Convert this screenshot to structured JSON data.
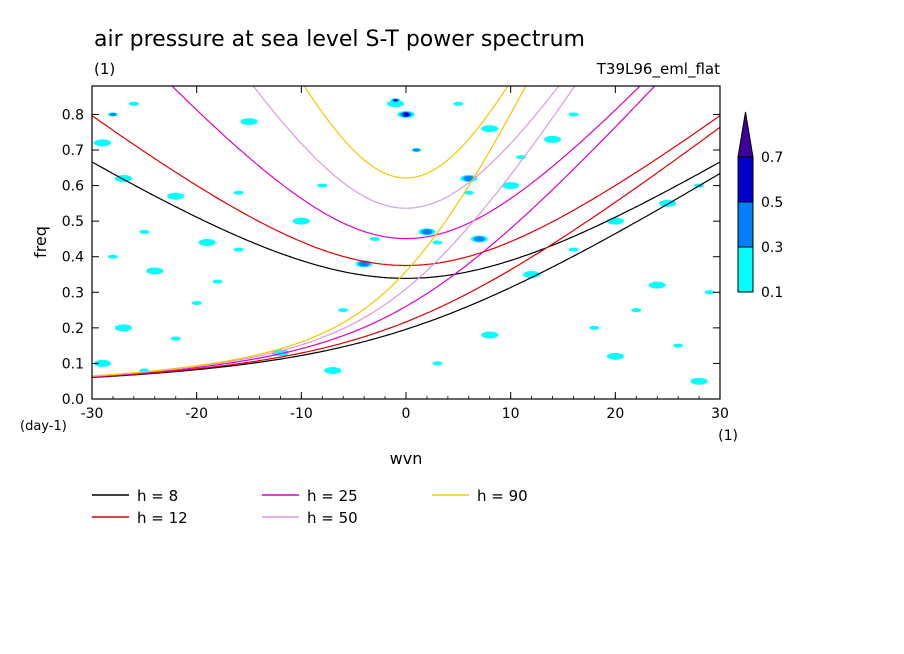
{
  "title": "air pressure at sea level S-T power spectrum",
  "subtitle_left": "(1)",
  "subtitle_right": "T39L96_eml_flat",
  "chart_data": {
    "type": "line",
    "xlabel": "wvn",
    "ylabel": "freq",
    "x_unit": "(1)",
    "y_unit": "(day-1)",
    "xlim": [
      -30,
      30
    ],
    "ylim": [
      0,
      0.88
    ],
    "xticks": [
      -30,
      -20,
      -10,
      0,
      10,
      20,
      30
    ],
    "xtick_labels": [
      "-30",
      "-20",
      "-10",
      "0",
      "10",
      "20",
      "30"
    ],
    "yticks": [
      0,
      0.1,
      0.2,
      0.3,
      0.4,
      0.5,
      0.6,
      0.7,
      0.8
    ],
    "ytick_labels": [
      "0.0",
      "0.1",
      "0.2",
      "0.3",
      "0.4",
      "0.5",
      "0.6",
      "0.7",
      "0.8"
    ],
    "colorbar": {
      "levels": [
        "0.1",
        "0.3",
        "0.5",
        "0.7"
      ],
      "colors": [
        "#00ffff",
        "#0080ff",
        "#0000cc",
        "#3d0099"
      ]
    },
    "contour_patches": [
      {
        "x": -28,
        "y": 0.8,
        "level": 1
      },
      {
        "x": -29,
        "y": 0.72,
        "level": 0
      },
      {
        "x": -26,
        "y": 0.83,
        "level": 0
      },
      {
        "x": -22,
        "y": 0.57,
        "level": 0
      },
      {
        "x": -16,
        "y": 0.58,
        "level": 0
      },
      {
        "x": -27,
        "y": 0.62,
        "level": 0
      },
      {
        "x": -25,
        "y": 0.47,
        "level": 0
      },
      {
        "x": -19,
        "y": 0.44,
        "level": 0
      },
      {
        "x": -28,
        "y": 0.4,
        "level": 0
      },
      {
        "x": -24,
        "y": 0.36,
        "level": 0
      },
      {
        "x": -16,
        "y": 0.42,
        "level": 0
      },
      {
        "x": -10,
        "y": 0.5,
        "level": 0
      },
      {
        "x": -8,
        "y": 0.6,
        "level": 0
      },
      {
        "x": -15,
        "y": 0.78,
        "level": 0
      },
      {
        "x": -18,
        "y": 0.33,
        "level": 0
      },
      {
        "x": -27,
        "y": 0.2,
        "level": 0
      },
      {
        "x": -22,
        "y": 0.17,
        "level": 0
      },
      {
        "x": -29,
        "y": 0.1,
        "level": 0
      },
      {
        "x": -25,
        "y": 0.08,
        "level": 0
      },
      {
        "x": -12,
        "y": 0.13,
        "level": 0
      },
      {
        "x": -6,
        "y": 0.25,
        "level": 0
      },
      {
        "x": -4,
        "y": 0.38,
        "level": 1
      },
      {
        "x": -3,
        "y": 0.45,
        "level": 0
      },
      {
        "x": -1,
        "y": 0.83,
        "level": 0
      },
      {
        "x": -1,
        "y": 0.84,
        "level": 2
      },
      {
        "x": 0,
        "y": 0.8,
        "level": 2
      },
      {
        "x": 1,
        "y": 0.7,
        "level": 1
      },
      {
        "x": 2,
        "y": 0.47,
        "level": 1
      },
      {
        "x": 3,
        "y": 0.44,
        "level": 0
      },
      {
        "x": 6,
        "y": 0.62,
        "level": 1
      },
      {
        "x": 6,
        "y": 0.58,
        "level": 0
      },
      {
        "x": 7,
        "y": 0.45,
        "level": 1
      },
      {
        "x": 5,
        "y": 0.83,
        "level": 0
      },
      {
        "x": 8,
        "y": 0.76,
        "level": 0
      },
      {
        "x": 11,
        "y": 0.68,
        "level": 0
      },
      {
        "x": 14,
        "y": 0.73,
        "level": 0
      },
      {
        "x": 16,
        "y": 0.8,
        "level": 0
      },
      {
        "x": 12,
        "y": 0.35,
        "level": 0
      },
      {
        "x": 18,
        "y": 0.2,
        "level": 0
      },
      {
        "x": 20,
        "y": 0.12,
        "level": 0
      },
      {
        "x": 22,
        "y": 0.25,
        "level": 0
      },
      {
        "x": 24,
        "y": 0.32,
        "level": 0
      },
      {
        "x": 26,
        "y": 0.15,
        "level": 0
      },
      {
        "x": 28,
        "y": 0.05,
        "level": 0
      },
      {
        "x": 29,
        "y": 0.3,
        "level": 0
      },
      {
        "x": 25,
        "y": 0.55,
        "level": 0
      },
      {
        "x": 28,
        "y": 0.6,
        "level": 0
      },
      {
        "x": 20,
        "y": 0.5,
        "level": 0
      },
      {
        "x": 16,
        "y": 0.42,
        "level": 0
      },
      {
        "x": -7,
        "y": 0.08,
        "level": 0
      },
      {
        "x": 3,
        "y": 0.1,
        "level": 0
      },
      {
        "x": 8,
        "y": 0.18,
        "level": 0
      },
      {
        "x": -20,
        "y": 0.27,
        "level": 0
      },
      {
        "x": 10,
        "y": 0.6,
        "level": 0
      }
    ],
    "series": [
      {
        "name": "h = 8",
        "color": "#000000",
        "equivalent_depth_m": 8
      },
      {
        "name": "h = 12",
        "color": "#dd0000",
        "equivalent_depth_m": 12
      },
      {
        "name": "h = 25",
        "color": "#dd00cc",
        "equivalent_depth_m": 25
      },
      {
        "name": "h = 50",
        "color": "#dd99dd",
        "equivalent_depth_m": 50
      },
      {
        "name": "h = 90",
        "color": "#f0c800",
        "equivalent_depth_m": 90
      }
    ],
    "legend_placement": "bottom"
  }
}
